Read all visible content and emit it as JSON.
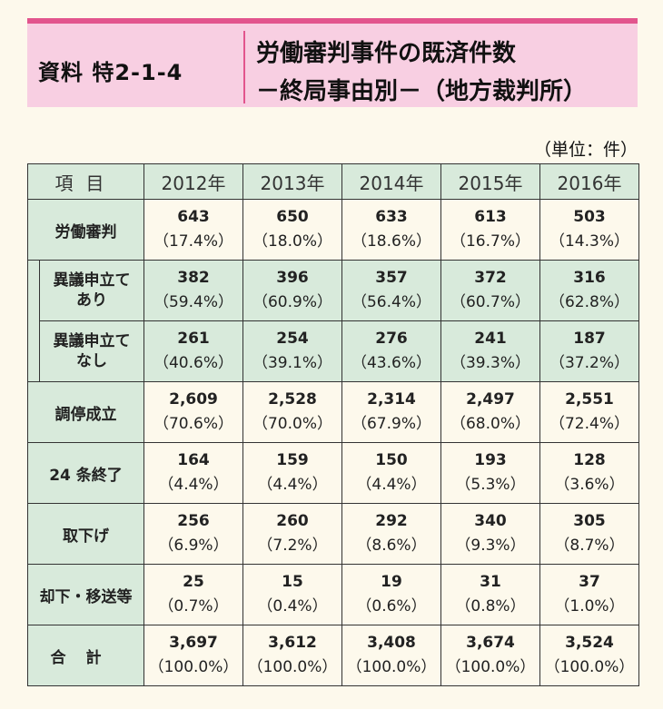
{
  "title": {
    "label": "資料 特2-1-4",
    "line1": "労働審判事件の既済件数",
    "line2": "－終局事由別－（地方裁判所）"
  },
  "unit": "（単位：件）",
  "table": {
    "header_item": "項目",
    "years": [
      "2012年",
      "2013年",
      "2014年",
      "2015年",
      "2016年"
    ],
    "rows": [
      {
        "label": "労働審判",
        "values": [
          "643",
          "650",
          "633",
          "613",
          "503"
        ],
        "pcts": [
          "（17.4%）",
          "（18.0%）",
          "（18.6%）",
          "（16.7%）",
          "（14.3%）"
        ]
      },
      {
        "label": "異議申立て\nあり",
        "values": [
          "382",
          "396",
          "357",
          "372",
          "316"
        ],
        "pcts": [
          "（59.4%）",
          "（60.9%）",
          "（56.4%）",
          "（60.7%）",
          "（62.8%）"
        ]
      },
      {
        "label": "異議申立て\nなし",
        "values": [
          "261",
          "254",
          "276",
          "241",
          "187"
        ],
        "pcts": [
          "（40.6%）",
          "（39.1%）",
          "（43.6%）",
          "（39.3%）",
          "（37.2%）"
        ]
      },
      {
        "label": "調停成立",
        "values": [
          "2,609",
          "2,528",
          "2,314",
          "2,497",
          "2,551"
        ],
        "pcts": [
          "（70.6%）",
          "（70.0%）",
          "（67.9%）",
          "（68.0%）",
          "（72.4%）"
        ]
      },
      {
        "label": "24 条終了",
        "values": [
          "164",
          "159",
          "150",
          "193",
          "128"
        ],
        "pcts": [
          "（4.4%）",
          "（4.4%）",
          "（4.4%）",
          "（5.3%）",
          "（3.6%）"
        ]
      },
      {
        "label": "取下げ",
        "values": [
          "256",
          "260",
          "292",
          "340",
          "305"
        ],
        "pcts": [
          "（6.9%）",
          "（7.2%）",
          "（8.6%）",
          "（9.3%）",
          "（8.7%）"
        ]
      },
      {
        "label": "却下・移送等",
        "values": [
          "25",
          "15",
          "19",
          "31",
          "37"
        ],
        "pcts": [
          "（0.7%）",
          "（0.4%）",
          "（0.6%）",
          "（0.8%）",
          "（1.0%）"
        ]
      },
      {
        "label": "合計",
        "values": [
          "3,697",
          "3,612",
          "3,408",
          "3,674",
          "3,524"
        ],
        "pcts": [
          "（100.0%）",
          "（100.0%）",
          "（100.0%）",
          "（100.0%）",
          "（100.0%）"
        ]
      }
    ]
  },
  "colors": {
    "accent": "#e2558d",
    "title_bg": "#f8cfe2",
    "cell_bg": "#d8eadb",
    "page_bg": "#fdf9ec"
  }
}
